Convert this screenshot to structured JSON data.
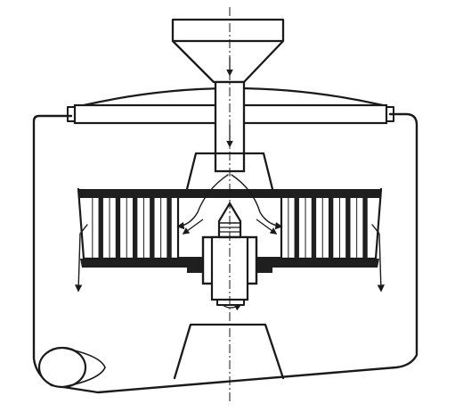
{
  "diagram": {
    "subject": "centrifugal-separator-cross-section",
    "colors": {
      "ink": "#1a1a1a",
      "paper": "#ffffff",
      "hatch_dark": "#2a2a2a"
    },
    "parts": [
      "feed-hopper",
      "feed-pipe",
      "lid",
      "housing",
      "rotor",
      "hub",
      "shaft",
      "cone-base",
      "drain-outlet"
    ],
    "flow_arrows": [
      "feed-down",
      "spread-left",
      "spread-right",
      "discharge-left",
      "discharge-right"
    ]
  }
}
